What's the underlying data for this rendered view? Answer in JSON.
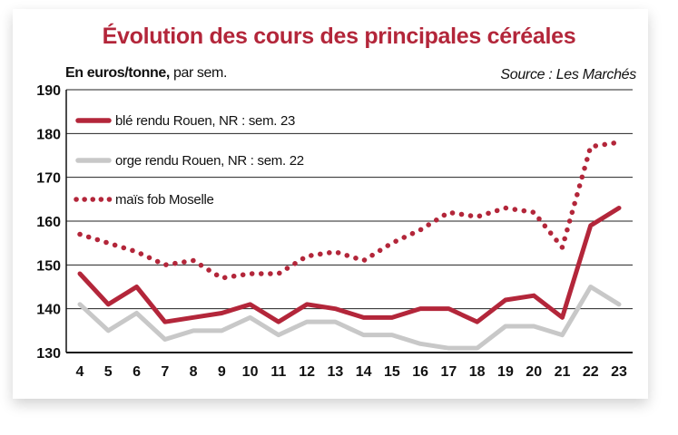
{
  "chart_data": {
    "type": "line",
    "title": "Évolution des cours des principales céréales",
    "unit_label_bold": "En euros/tonne,",
    "unit_label_rest": " par sem.",
    "source": "Source : Les Marchés",
    "x": [
      4,
      5,
      6,
      7,
      8,
      9,
      10,
      11,
      12,
      13,
      14,
      15,
      16,
      17,
      18,
      19,
      20,
      21,
      22,
      23
    ],
    "ylim": [
      130,
      190
    ],
    "yticks": [
      130,
      140,
      150,
      160,
      170,
      180,
      190
    ],
    "grid": true,
    "legend_placement": "top-left",
    "series": [
      {
        "name": "blé rendu Rouen, NR : sem. 23",
        "color": "#b3263a",
        "style": "solid-thick",
        "values": [
          148,
          141,
          145,
          137,
          138,
          139,
          141,
          137,
          141,
          140,
          138,
          138,
          140,
          140,
          137,
          142,
          143,
          138,
          159,
          163
        ]
      },
      {
        "name": "orge rendu Rouen, NR : sem. 22",
        "color": "#c8c8c8",
        "style": "solid",
        "values": [
          141,
          135,
          139,
          133,
          135,
          135,
          138,
          134,
          137,
          137,
          134,
          134,
          132,
          131,
          131,
          136,
          136,
          134,
          145,
          141
        ]
      },
      {
        "name": "maïs fob Moselle",
        "color": "#b3263a",
        "style": "dotted",
        "values": [
          157,
          155,
          153,
          150,
          151,
          147,
          148,
          148,
          152,
          153,
          151,
          155,
          158,
          162,
          161,
          163,
          162,
          154,
          177,
          178
        ]
      }
    ]
  }
}
